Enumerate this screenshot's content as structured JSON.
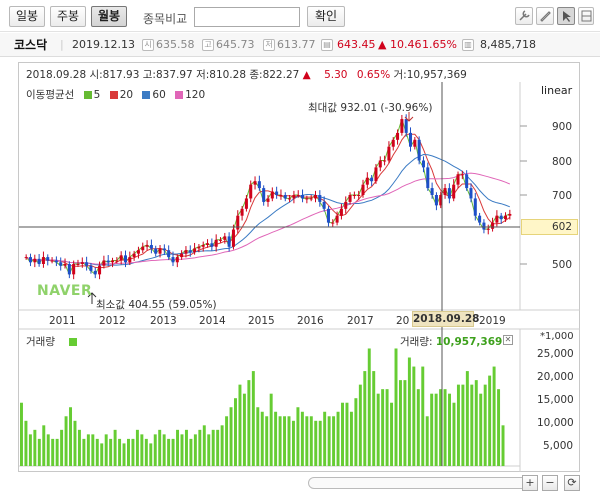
{
  "toolbar": {
    "daily": "일봉",
    "weekly": "주봉",
    "monthly": "월봉",
    "compare_label": "종목비교",
    "search_value": "",
    "confirm": "확인",
    "icons": [
      "wrench-icon",
      "pen-icon",
      "cursor-icon",
      "grid-icon"
    ]
  },
  "info": {
    "name": "코스닥",
    "date": "2019.12.13",
    "open_badge": "시",
    "open": "635.58",
    "high_badge": "고",
    "high": "645.73",
    "low_badge": "저",
    "low": "613.77",
    "close": "643.45",
    "change": "▲ 10.46",
    "change_pct": "1.65%",
    "volume": "8,485,718"
  },
  "ohlc": {
    "date": "2018.09.28",
    "open_lbl": "시:",
    "open": "817.93",
    "high_lbl": "고:",
    "high": "837.97",
    "low_lbl": "저:",
    "low": "810.28",
    "close_lbl": "종:",
    "close": "822.27",
    "change": "▲",
    "change_val": "5.30",
    "change_pct": "0.65%",
    "vol_lbl": "거:",
    "volume": "10,957,369"
  },
  "legend": {
    "title": "이동평균선",
    "ma": [
      {
        "label": "5",
        "color": "#66bb33"
      },
      {
        "label": "20",
        "color": "#d93a3a"
      },
      {
        "label": "60",
        "color": "#3b7bc4"
      },
      {
        "label": "120",
        "color": "#e066b8"
      }
    ]
  },
  "scale_label": "linear",
  "price_axis": [
    "900",
    "800",
    "700",
    "500"
  ],
  "current_price_tag": "602",
  "year_axis": [
    "2011",
    "2012",
    "2013",
    "2014",
    "2015",
    "2016",
    "2017",
    "20",
    "2019"
  ],
  "crosshair_date": "2018.09.28",
  "annotations": {
    "max": "최대값 932.01 (-30.96%)",
    "min": "최소값 404.55 (59.05%)"
  },
  "watermark": "NAVER",
  "volume_panel": {
    "title": "거래량",
    "info_label": "거래량:",
    "info_value": "10,957,369",
    "unit": "*1,000",
    "axis": [
      "25,000",
      "20,000",
      "15,000",
      "10,000",
      "5,000"
    ]
  },
  "colors": {
    "up": "#d0021b",
    "down": "#1e4fc7",
    "volume": "#66cc33"
  },
  "chart_data": {
    "type": "candlestick",
    "price_range": [
      400,
      960
    ],
    "candles_monthly_close_approx": [
      520,
      505,
      515,
      500,
      520,
      510,
      510,
      505,
      495,
      500,
      470,
      500,
      500,
      505,
      495,
      480,
      470,
      495,
      510,
      505,
      510,
      510,
      525,
      505,
      520,
      530,
      540,
      550,
      555,
      545,
      530,
      545,
      540,
      520,
      505,
      520,
      530,
      540,
      535,
      545,
      550,
      555,
      560,
      550,
      570,
      570,
      580,
      550,
      600,
      640,
      660,
      690,
      730,
      740,
      720,
      680,
      690,
      710,
      700,
      700,
      690,
      690,
      700,
      700,
      690,
      690,
      690,
      700,
      680,
      660,
      620,
      620,
      640,
      660,
      680,
      700,
      700,
      700,
      730,
      750,
      740,
      780,
      800,
      800,
      840,
      860,
      880,
      920,
      880,
      840,
      860,
      800,
      780,
      720,
      700,
      670,
      700,
      720,
      690,
      730,
      760,
      760,
      720,
      690,
      640,
      620,
      600,
      602,
      620,
      640,
      630,
      640,
      645
    ],
    "volume_thousands_approx": [
      14,
      10,
      7,
      8,
      6,
      9,
      7,
      6,
      6,
      8,
      11,
      13,
      10,
      8,
      6,
      7,
      7,
      6,
      5,
      7,
      6,
      8,
      6,
      5,
      6,
      6,
      8,
      7,
      6,
      5,
      7,
      8,
      7,
      6,
      6,
      8,
      7,
      8,
      6,
      7,
      8,
      9,
      7,
      8,
      8,
      9,
      11,
      13,
      15,
      18,
      16,
      19,
      21,
      13,
      12,
      11,
      16,
      12,
      11,
      11,
      11,
      10,
      13,
      12,
      11,
      11,
      10,
      10,
      12,
      11,
      11,
      12,
      14,
      14,
      12,
      15,
      18,
      21,
      26,
      21,
      16,
      17,
      17,
      14,
      26,
      19,
      19,
      24,
      22,
      17,
      22,
      11,
      16,
      16,
      17,
      17,
      16,
      14,
      18,
      18,
      21,
      18,
      19,
      16,
      18,
      20,
      22,
      17,
      9
    ]
  }
}
